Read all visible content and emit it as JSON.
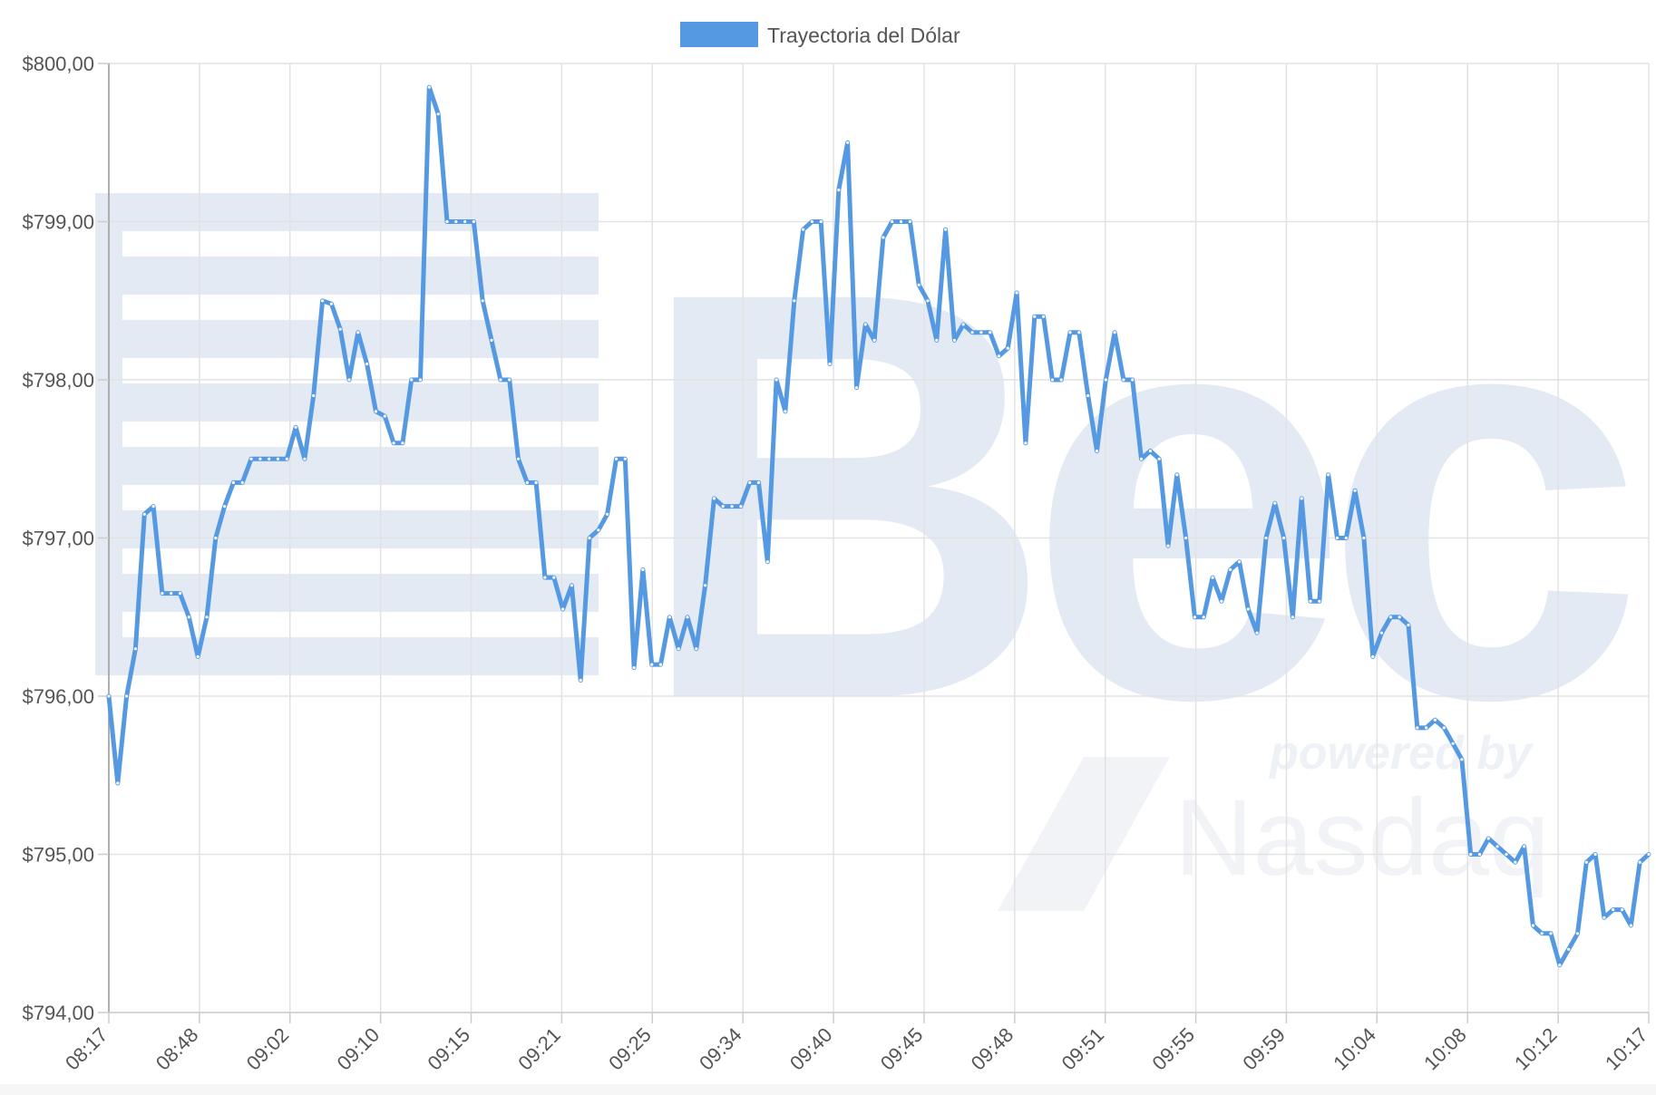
{
  "chart_data": {
    "type": "line",
    "title": "",
    "xlabel": "",
    "ylabel": "",
    "ylim": [
      794,
      800
    ],
    "y_ticks": [
      "$794,00",
      "$795,00",
      "$796,00",
      "$797,00",
      "$798,00",
      "$799,00",
      "$800,00"
    ],
    "x_ticks": [
      "08:17",
      "08:48",
      "09:02",
      "09:10",
      "09:15",
      "09:21",
      "09:25",
      "09:34",
      "09:40",
      "09:45",
      "09:48",
      "09:51",
      "09:55",
      "09:59",
      "10:04",
      "10:08",
      "10:12",
      "10:17"
    ],
    "grid": true,
    "legend_position": "top",
    "series": [
      {
        "name": "Trayectoria del Dólar",
        "color": "#5599e2",
        "values": [
          796.0,
          795.45,
          796.0,
          796.3,
          797.15,
          797.2,
          796.65,
          796.65,
          796.65,
          796.5,
          796.25,
          796.5,
          797.0,
          797.2,
          797.35,
          797.35,
          797.5,
          797.5,
          797.5,
          797.5,
          797.5,
          797.7,
          797.5,
          797.9,
          798.5,
          798.48,
          798.32,
          798.0,
          798.3,
          798.1,
          797.8,
          797.77,
          797.6,
          797.6,
          798.0,
          798.0,
          799.85,
          799.68,
          799.0,
          799.0,
          799.0,
          799.0,
          798.5,
          798.25,
          798.0,
          798.0,
          797.5,
          797.35,
          797.35,
          796.75,
          796.75,
          796.55,
          796.7,
          796.1,
          797.0,
          797.05,
          797.15,
          797.5,
          797.5,
          796.18,
          796.8,
          796.2,
          796.2,
          796.5,
          796.3,
          796.5,
          796.3,
          796.7,
          797.25,
          797.2,
          797.2,
          797.2,
          797.35,
          797.35,
          796.85,
          798.0,
          797.8,
          798.5,
          798.95,
          799.0,
          799.0,
          798.1,
          799.2,
          799.5,
          797.95,
          798.35,
          798.25,
          798.9,
          799.0,
          799.0,
          799.0,
          798.6,
          798.5,
          798.25,
          798.95,
          798.25,
          798.35,
          798.3,
          798.3,
          798.3,
          798.15,
          798.2,
          798.55,
          797.6,
          798.4,
          798.4,
          798.0,
          798.0,
          798.3,
          798.3,
          797.9,
          797.55,
          798.0,
          798.3,
          798.0,
          798.0,
          797.5,
          797.55,
          797.5,
          796.95,
          797.4,
          797.0,
          796.5,
          796.5,
          796.75,
          796.6,
          796.8,
          796.85,
          796.55,
          796.4,
          797.0,
          797.22,
          797.0,
          796.5,
          797.25,
          796.6,
          796.6,
          797.4,
          797.0,
          797.0,
          797.3,
          797.0,
          796.25,
          796.4,
          796.5,
          796.5,
          796.45,
          795.8,
          795.8,
          795.85,
          795.8,
          795.7,
          795.6,
          795.0,
          795.0,
          795.1,
          795.05,
          795.0,
          794.95,
          795.05,
          794.55,
          794.5,
          794.5,
          794.3,
          794.4,
          794.5,
          794.95,
          795.0,
          794.6,
          794.65,
          794.65,
          794.55,
          794.95,
          795.0
        ]
      }
    ]
  },
  "watermark": {
    "color": "#e3eaf4",
    "brand_letters": "Bec",
    "powered_by": "powered by",
    "partner_name": "Nasdaq"
  }
}
